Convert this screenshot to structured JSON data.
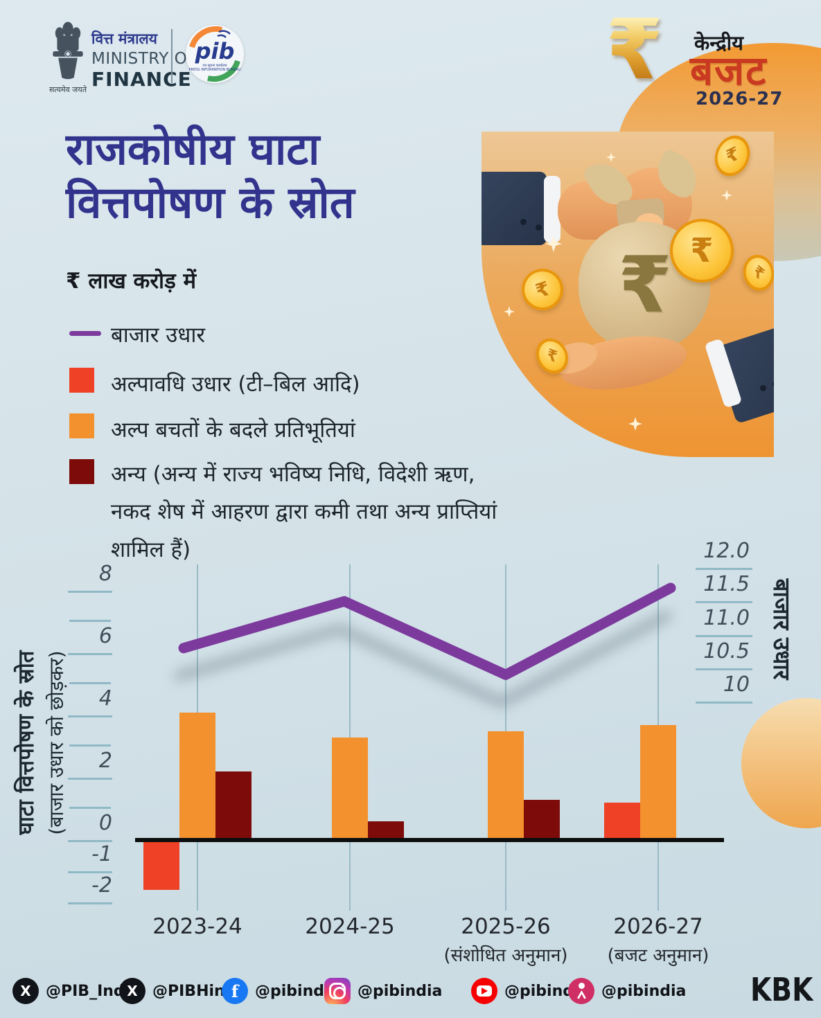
{
  "header": {
    "ministry": {
      "motto": "सत्यमेव जयते",
      "hindi": "वित्त मंत्रालय",
      "en1": "MINISTRY OF",
      "en2": "FINANCE"
    },
    "pib": {
      "word": "pib",
      "sub1": "पत्र सूचना कार्यालय",
      "sub2": "PRESS INFORMATION BUREAU"
    },
    "budget": {
      "rupee": "₹",
      "line1": "केन्द्रीय",
      "line2": "बजट",
      "year": "2026-27"
    }
  },
  "title": {
    "line1": "राजकोषीय घाटा",
    "line2": "वित्तपोषण के स्रोत",
    "unit": "₹ लाख करोड़ में"
  },
  "legend": {
    "line": {
      "label": "बाजार उधार",
      "color": "#7c3a9d"
    },
    "items": [
      {
        "label": "अल्पावधि उधार (टी–बिल आदि)",
        "color": "#ee4125"
      },
      {
        "label": "अल्प बचतों के बदले प्रतिभूतियां",
        "color": "#f3912e"
      },
      {
        "label": "अन्य (अन्य में राज्य भविष्य निधि, विदेशी ऋण, नकद शेष में आहरण द्वारा कमी तथा अन्य प्राप्तियां शामिल हैं)",
        "color": "#7d0b09"
      }
    ]
  },
  "chart_data": {
    "type": "combo-bar-line",
    "title": "राजकोषीय घाटा वित्तपोषण के स्रोत",
    "unit": "₹ लाख करोड़ में",
    "categories": [
      "2023-24",
      "2024-25",
      "2025-26",
      "2026-27"
    ],
    "category_notes": [
      "",
      "",
      "(संशोधित अनुमान)",
      "(बजट अनुमान)"
    ],
    "bar_series": [
      {
        "name": "अल्पावधि उधार (टी–बिल आदि)",
        "color": "#ee4125",
        "values": [
          -1.6,
          null,
          null,
          1.2
        ]
      },
      {
        "name": "अल्प बचतों के बदले प्रतिभूतियां",
        "color": "#f3912e",
        "values": [
          4.1,
          3.3,
          3.5,
          3.7
        ]
      },
      {
        "name": "अन्य",
        "color": "#7d0b09",
        "values": [
          2.2,
          0.6,
          1.3,
          null
        ]
      }
    ],
    "line_series": {
      "name": "बाजार उधार",
      "color": "#7c3a9d",
      "axis": "right",
      "values": [
        10.8,
        11.5,
        10.4,
        11.7
      ]
    },
    "left_axis": {
      "title": "घाटा वित्तपोषण के स्रोत",
      "subtitle": "(बाजार उधार को छोड़कर)",
      "major_ticks": [
        8,
        6,
        4,
        2,
        0,
        -1,
        -2
      ],
      "minor_ticks": [
        7,
        5,
        3,
        1
      ],
      "range": [
        -2.5,
        8.8
      ]
    },
    "right_axis": {
      "title": "बाजार उधार",
      "tick_labels": [
        "12.0",
        "11.5",
        "11.0",
        "10.5",
        "10"
      ],
      "tick_values": [
        12,
        11.5,
        11,
        10.5,
        10
      ],
      "range": [
        9.6,
        12.2
      ]
    },
    "grid": "vertical-per-category",
    "legend_position": "top-left"
  },
  "illustration": {
    "money_bag_symbol": "₹"
  },
  "footer": {
    "socials": [
      {
        "platform": "x",
        "handle": "@PIB_India"
      },
      {
        "platform": "x",
        "handle": "@PIBHindi"
      },
      {
        "platform": "facebook",
        "handle": "@pibindia"
      },
      {
        "platform": "instagram",
        "handle": "@pibindia"
      },
      {
        "platform": "youtube",
        "handle": "@pibindia"
      },
      {
        "platform": "koo",
        "handle": "@pibindia"
      }
    ],
    "credit": "KBK"
  }
}
